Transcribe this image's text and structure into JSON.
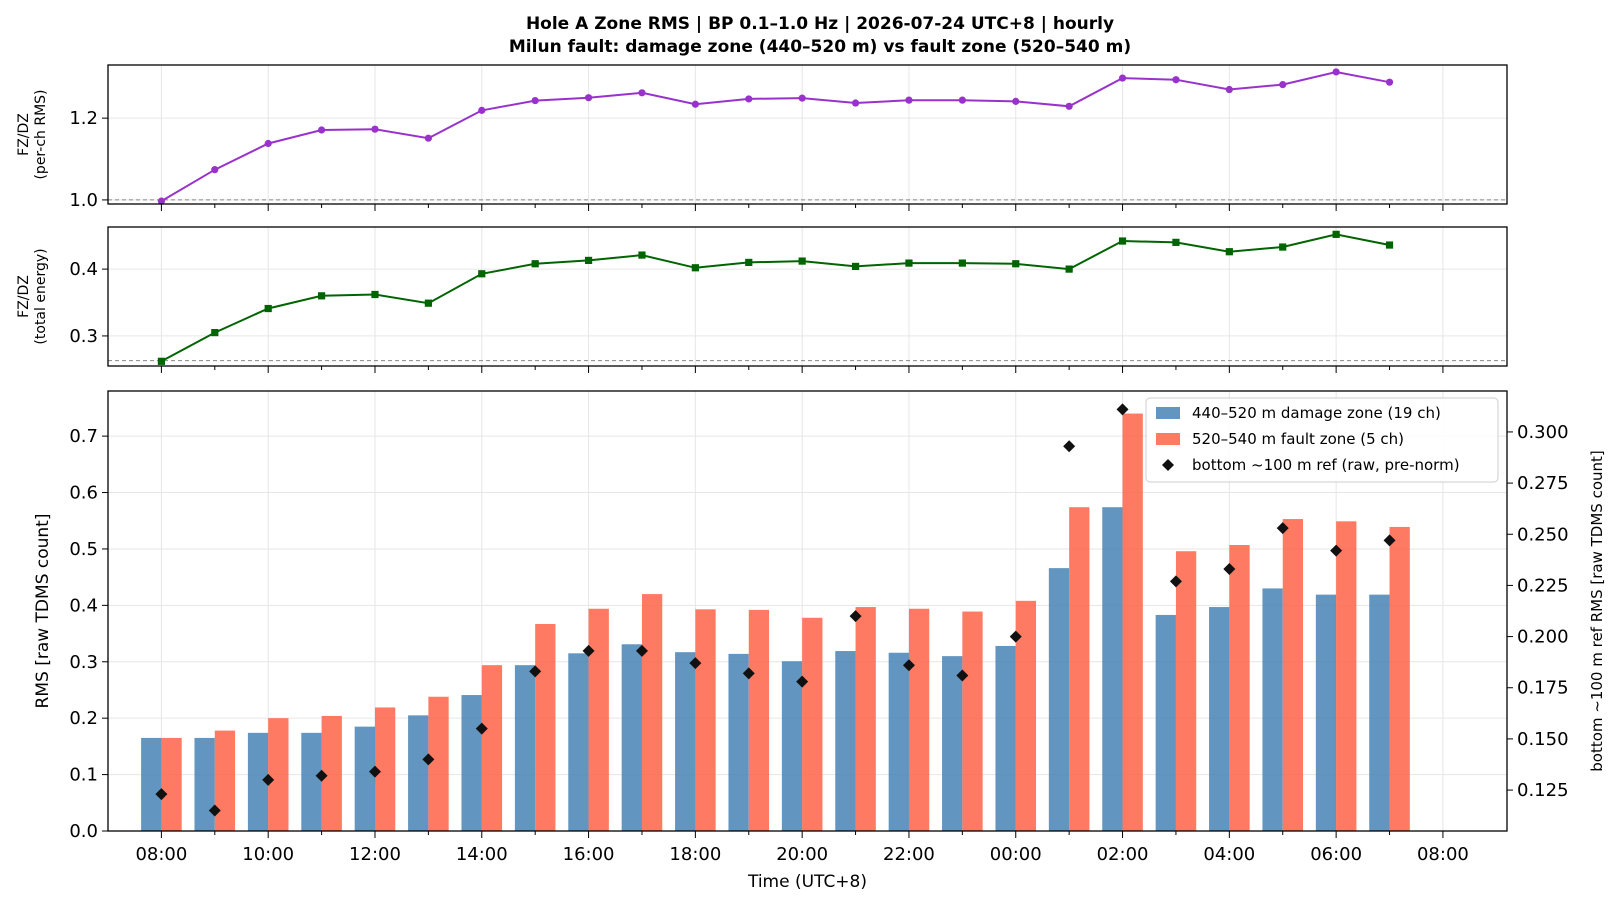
{
  "title_line1": "Hole A Zone RMS  |  BP 0.1–1.0 Hz  |  2026-07-24 UTC+8  |  hourly",
  "title_line2": "Milun fault: damage zone (440–520 m) vs fault zone (520–540 m)",
  "colors": {
    "ratio_rms": "#9932cc",
    "ratio_energy": "#006400",
    "damage_zone": "#4682b4",
    "fault_zone": "#ff6347",
    "bottom_ref": "#111111",
    "grid": "#e6e6e6",
    "ref_line": "#888888"
  },
  "chart_data": [
    {
      "type": "line",
      "panel": "top",
      "ylabel_line1": "FZ/DZ",
      "ylabel_line2": "(per-ch RMS)",
      "marker": "circle",
      "ylim": [
        0.99,
        1.33
      ],
      "yticks": [
        "1.0",
        "1.2"
      ],
      "ref_line_y": 1.0,
      "grid": true,
      "x": [
        "08:00",
        "09:00",
        "10:00",
        "11:00",
        "12:00",
        "13:00",
        "14:00",
        "15:00",
        "16:00",
        "17:00",
        "18:00",
        "19:00",
        "20:00",
        "21:00",
        "22:00",
        "23:00",
        "00:00",
        "01:00",
        "02:00",
        "03:00",
        "04:00",
        "05:00",
        "06:00",
        "07:00"
      ],
      "values": [
        0.997,
        1.074,
        1.138,
        1.171,
        1.173,
        1.151,
        1.219,
        1.243,
        1.25,
        1.262,
        1.234,
        1.247,
        1.249,
        1.237,
        1.244,
        1.244,
        1.241,
        1.229,
        1.298,
        1.294,
        1.27,
        1.282,
        1.313,
        1.288
      ]
    },
    {
      "type": "line",
      "panel": "middle",
      "ylabel_line1": "FZ/DZ",
      "ylabel_line2": "(total energy)",
      "marker": "square",
      "ylim": [
        0.255,
        0.463
      ],
      "yticks": [
        "0.3",
        "0.4"
      ],
      "ref_line_y": 0.263,
      "grid": true,
      "x": [
        "08:00",
        "09:00",
        "10:00",
        "11:00",
        "12:00",
        "13:00",
        "14:00",
        "15:00",
        "16:00",
        "17:00",
        "18:00",
        "19:00",
        "20:00",
        "21:00",
        "22:00",
        "23:00",
        "00:00",
        "01:00",
        "02:00",
        "03:00",
        "04:00",
        "05:00",
        "06:00",
        "07:00"
      ],
      "values": [
        0.262,
        0.305,
        0.341,
        0.36,
        0.362,
        0.349,
        0.393,
        0.408,
        0.413,
        0.421,
        0.402,
        0.41,
        0.412,
        0.404,
        0.409,
        0.409,
        0.408,
        0.4,
        0.442,
        0.44,
        0.426,
        0.433,
        0.452,
        0.436
      ]
    },
    {
      "type": "bar",
      "panel": "bottom",
      "title": "",
      "xlabel": "Time (UTC+8)",
      "ylabel": "RMS  [raw TDMS count]",
      "ylabel_right": "bottom ~100 m ref RMS  [raw TDMS count]",
      "ylim": [
        0,
        0.78
      ],
      "yticks": [
        "0.0",
        "0.1",
        "0.2",
        "0.3",
        "0.4",
        "0.5",
        "0.6",
        "0.7"
      ],
      "ylim_right": [
        0.105,
        0.32
      ],
      "yticks_right": [
        "0.125",
        "0.150",
        "0.175",
        "0.200",
        "0.225",
        "0.250",
        "0.275",
        "0.300"
      ],
      "xtick_labels": [
        "08:00",
        "10:00",
        "12:00",
        "14:00",
        "16:00",
        "18:00",
        "20:00",
        "22:00",
        "00:00",
        "02:00",
        "04:00",
        "06:00",
        "08:00"
      ],
      "grid": true,
      "legend_position": "top-right",
      "categories": [
        "08:00",
        "09:00",
        "10:00",
        "11:00",
        "12:00",
        "13:00",
        "14:00",
        "15:00",
        "16:00",
        "17:00",
        "18:00",
        "19:00",
        "20:00",
        "21:00",
        "22:00",
        "23:00",
        "00:00",
        "01:00",
        "02:00",
        "03:00",
        "04:00",
        "05:00",
        "06:00",
        "07:00"
      ],
      "series": [
        {
          "name": "440–520 m  damage zone (19 ch)",
          "axis": "left",
          "kind": "bar",
          "values": [
            0.165,
            0.165,
            0.174,
            0.174,
            0.185,
            0.205,
            0.241,
            0.294,
            0.315,
            0.331,
            0.317,
            0.314,
            0.301,
            0.319,
            0.316,
            0.31,
            0.328,
            0.466,
            0.574,
            0.383,
            0.397,
            0.43,
            0.419,
            0.419
          ]
        },
        {
          "name": "520–540 m  fault zone (5 ch)",
          "axis": "left",
          "kind": "bar",
          "values": [
            0.165,
            0.178,
            0.2,
            0.204,
            0.219,
            0.238,
            0.294,
            0.367,
            0.394,
            0.42,
            0.393,
            0.392,
            0.378,
            0.397,
            0.394,
            0.389,
            0.408,
            0.574,
            0.74,
            0.496,
            0.507,
            0.553,
            0.549,
            0.539
          ]
        },
        {
          "name": "bottom ~100 m ref (raw, pre-norm)",
          "axis": "right",
          "kind": "scatter",
          "values": [
            0.123,
            0.115,
            0.13,
            0.132,
            0.134,
            0.14,
            0.155,
            0.183,
            0.193,
            0.193,
            0.187,
            0.182,
            0.178,
            0.21,
            0.186,
            0.181,
            0.2,
            0.293,
            0.311,
            0.227,
            0.233,
            0.253,
            0.242,
            0.247
          ]
        }
      ]
    }
  ]
}
